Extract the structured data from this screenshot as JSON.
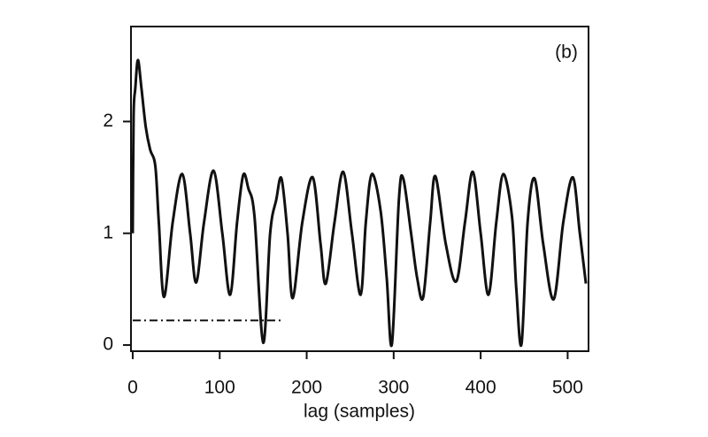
{
  "chart_data": {
    "type": "line",
    "annotation": "(b)",
    "x_label": "lag (samples)",
    "xlim": [
      -2,
      524
    ],
    "ylim": [
      -0.055,
      2.85
    ],
    "xticks": [
      0,
      100,
      200,
      300,
      400,
      500
    ],
    "yticks": [
      0,
      1,
      2
    ],
    "series": [
      {
        "color": "#111111",
        "style": "solid",
        "x": [
          0,
          1,
          3,
          6,
          10,
          15,
          20,
          26,
          30,
          36,
          46,
          57,
          66,
          73,
          82,
          93,
          103,
          112,
          120,
          127,
          133,
          140,
          150,
          158,
          165,
          171,
          178,
          184,
          195,
          207,
          216,
          222,
          232,
          242,
          252,
          262,
          268,
          275,
          285,
          292,
          298,
          306,
          311,
          320,
          327,
          334,
          342,
          348,
          360,
          372,
          382,
          391,
          400,
          409,
          418,
          426,
          436,
          441,
          447,
          454,
          462,
          472,
          484,
          495,
          506,
          514,
          521
        ],
        "values": [
          1.0,
          2.05,
          2.3,
          2.55,
          2.3,
          1.95,
          1.75,
          1.6,
          1.1,
          0.43,
          1.1,
          1.53,
          1.0,
          0.56,
          1.1,
          1.56,
          1.0,
          0.45,
          1.1,
          1.52,
          1.4,
          1.15,
          0.02,
          1.0,
          1.3,
          1.49,
          1.0,
          0.42,
          1.1,
          1.5,
          0.9,
          0.55,
          1.1,
          1.55,
          1.0,
          0.45,
          1.1,
          1.53,
          1.2,
          0.6,
          0.01,
          1.3,
          1.49,
          1.0,
          0.6,
          0.43,
          1.1,
          1.51,
          0.9,
          0.57,
          1.1,
          1.55,
          1.0,
          0.45,
          1.1,
          1.53,
          1.15,
          0.5,
          0.01,
          1.1,
          1.49,
          0.9,
          0.41,
          1.1,
          1.5,
          1.0,
          0.55
        ]
      },
      {
        "color": "#111111",
        "style": "dashdot",
        "x": [
          0,
          172
        ],
        "values": [
          0.22,
          0.22
        ]
      }
    ]
  }
}
